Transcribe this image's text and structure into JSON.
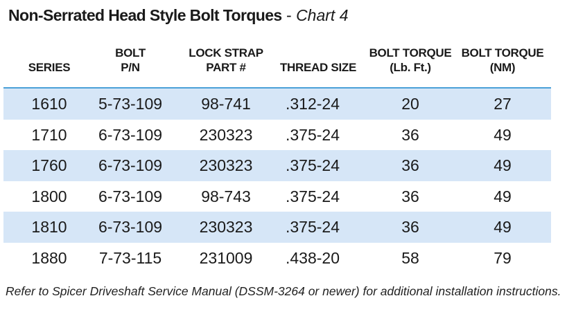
{
  "title": {
    "main": "Non-Serrated Head Style Bolt Torques",
    "separator": " - ",
    "sub": "Chart 4"
  },
  "table": {
    "headers": [
      [
        "SERIES"
      ],
      [
        "BOLT",
        "P/N"
      ],
      [
        "LOCK STRAP",
        "PART #"
      ],
      [
        "THREAD SIZE"
      ],
      [
        "BOLT TORQUE",
        "(Lb. Ft.)"
      ],
      [
        "BOLT TORQUE",
        "(NM)"
      ]
    ],
    "rows": [
      [
        "1610",
        "5-73-109",
        "98-741",
        ".312-24",
        "20",
        "27"
      ],
      [
        "1710",
        "6-73-109",
        "230323",
        ".375-24",
        "36",
        "49"
      ],
      [
        "1760",
        "6-73-109",
        "230323",
        ".375-24",
        "36",
        "49"
      ],
      [
        "1800",
        "6-73-109",
        "98-743",
        ".375-24",
        "36",
        "49"
      ],
      [
        "1810",
        "6-73-109",
        "230323",
        ".375-24",
        "36",
        "49"
      ],
      [
        "1880",
        "7-73-115",
        "231009",
        ".438-20",
        "58",
        "79"
      ]
    ]
  },
  "note": "Refer to Spicer Driveshaft Service Manual (DSSM-3264 or newer) for additional installation instructions.",
  "colors": {
    "row_shade": "#d6e6f7",
    "header_rule": "#4aa0d8"
  }
}
